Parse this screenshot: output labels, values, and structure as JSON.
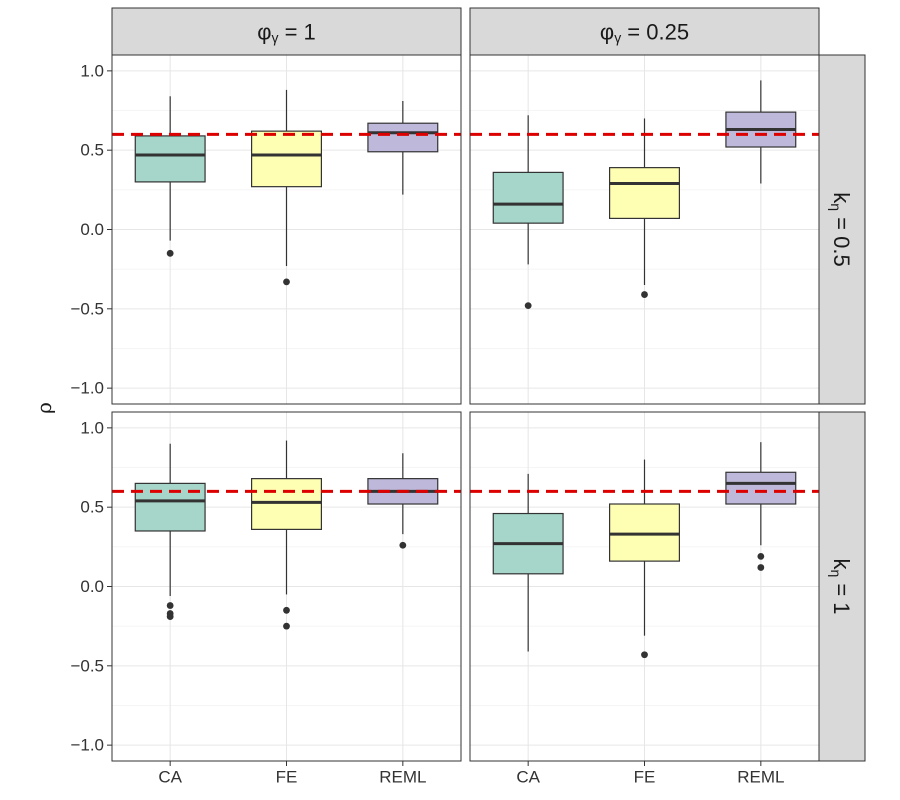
{
  "chart_data": {
    "type": "boxplot",
    "ylabel": "ρ",
    "ylim": [
      -1.1,
      1.1
    ],
    "yticks": [
      -1.0,
      -0.5,
      0.0,
      0.5,
      1.0
    ],
    "ytick_labels": [
      "−1.0",
      "−0.5",
      "0.0",
      "0.5",
      "1.0"
    ],
    "categories": [
      "CA",
      "FE",
      "REML"
    ],
    "reference_line": {
      "y": 0.6,
      "color": "#dd0000",
      "style": "dashed"
    },
    "colors": {
      "CA": "#a6d5c9",
      "FE": "#ffffb3",
      "REML": "#beb9da"
    },
    "columns": [
      {
        "base": "φ",
        "sub": "γ",
        "rest": " = 1"
      },
      {
        "base": "φ",
        "sub": "γ",
        "rest": " = 0.25"
      }
    ],
    "rows": [
      {
        "base": "k",
        "sub": "η",
        "rest": " = 0.5"
      },
      {
        "base": "k",
        "sub": "η",
        "rest": " = 1"
      }
    ],
    "panels": [
      {
        "row": 0,
        "col": 0,
        "boxes": [
          {
            "category": "CA",
            "whisker_low": -0.07,
            "q1": 0.3,
            "median": 0.47,
            "q3": 0.59,
            "whisker_high": 0.84,
            "outliers": [
              -0.15
            ]
          },
          {
            "category": "FE",
            "whisker_low": -0.23,
            "q1": 0.27,
            "median": 0.47,
            "q3": 0.62,
            "whisker_high": 0.88,
            "outliers": [
              -0.33
            ]
          },
          {
            "category": "REML",
            "whisker_low": 0.22,
            "q1": 0.49,
            "median": 0.61,
            "q3": 0.67,
            "whisker_high": 0.81,
            "outliers": []
          }
        ]
      },
      {
        "row": 0,
        "col": 1,
        "boxes": [
          {
            "category": "CA",
            "whisker_low": -0.22,
            "q1": 0.04,
            "median": 0.16,
            "q3": 0.36,
            "whisker_high": 0.72,
            "outliers": [
              -0.48
            ]
          },
          {
            "category": "FE",
            "whisker_low": -0.35,
            "q1": 0.07,
            "median": 0.29,
            "q3": 0.39,
            "whisker_high": 0.7,
            "outliers": [
              -0.41
            ]
          },
          {
            "category": "REML",
            "whisker_low": 0.29,
            "q1": 0.52,
            "median": 0.63,
            "q3": 0.74,
            "whisker_high": 0.94,
            "outliers": []
          }
        ]
      },
      {
        "row": 1,
        "col": 0,
        "boxes": [
          {
            "category": "CA",
            "whisker_low": -0.06,
            "q1": 0.35,
            "median": 0.54,
            "q3": 0.65,
            "whisker_high": 0.9,
            "outliers": [
              -0.12,
              -0.17,
              -0.19
            ]
          },
          {
            "category": "FE",
            "whisker_low": -0.05,
            "q1": 0.36,
            "median": 0.53,
            "q3": 0.68,
            "whisker_high": 0.92,
            "outliers": [
              -0.15,
              -0.25
            ]
          },
          {
            "category": "REML",
            "whisker_low": 0.33,
            "q1": 0.52,
            "median": 0.6,
            "q3": 0.68,
            "whisker_high": 0.84,
            "outliers": [
              0.26
            ]
          }
        ]
      },
      {
        "row": 1,
        "col": 1,
        "boxes": [
          {
            "category": "CA",
            "whisker_low": -0.41,
            "q1": 0.08,
            "median": 0.27,
            "q3": 0.46,
            "whisker_high": 0.71,
            "outliers": []
          },
          {
            "category": "FE",
            "whisker_low": -0.31,
            "q1": 0.16,
            "median": 0.33,
            "q3": 0.52,
            "whisker_high": 0.8,
            "outliers": [
              -0.43
            ]
          },
          {
            "category": "REML",
            "whisker_low": 0.26,
            "q1": 0.52,
            "median": 0.65,
            "q3": 0.72,
            "whisker_high": 0.91,
            "outliers": [
              0.19,
              0.12
            ]
          }
        ]
      }
    ]
  }
}
